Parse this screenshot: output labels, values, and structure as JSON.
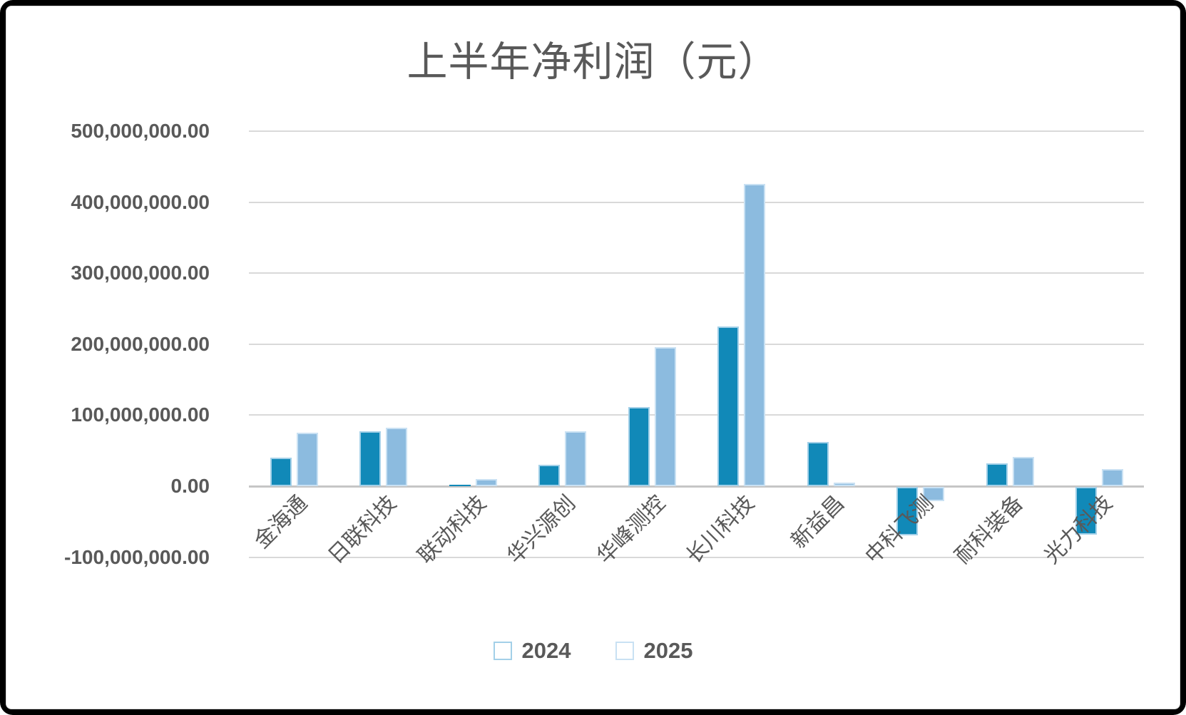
{
  "chart_data": {
    "type": "bar",
    "title": "上半年净利润（元）",
    "categories": [
      "金海通",
      "日联科技",
      "联动科技",
      "华兴源创",
      "华峰测控",
      "长川科技",
      "新益昌",
      "中科飞测",
      "耐科装备",
      "光力科技"
    ],
    "series": [
      {
        "name": "2024",
        "color": "#1189b8",
        "values": [
          40000000,
          77000000,
          2000000,
          30000000,
          111000000,
          225000000,
          62000000,
          -68000000,
          32000000,
          -67000000
        ]
      },
      {
        "name": "2025",
        "color": "#8cbbdf",
        "values": [
          75000000,
          82000000,
          10000000,
          77000000,
          196000000,
          426000000,
          5000000,
          -20000000,
          41000000,
          24000000
        ]
      }
    ],
    "y_axis": {
      "min": -100000000,
      "max": 500000000,
      "step": 100000000,
      "tick_labels": [
        "500,000,000.00",
        "400,000,000.00",
        "300,000,000.00",
        "200,000,000.00",
        "100,000,000.00",
        "0.00",
        "-100,000,000.00"
      ]
    },
    "grid": true,
    "legend_position": "bottom",
    "colors": {
      "text": "#595959",
      "gridline": "#d9d9d9",
      "frame": "#000000",
      "background": "#ffffff"
    }
  }
}
